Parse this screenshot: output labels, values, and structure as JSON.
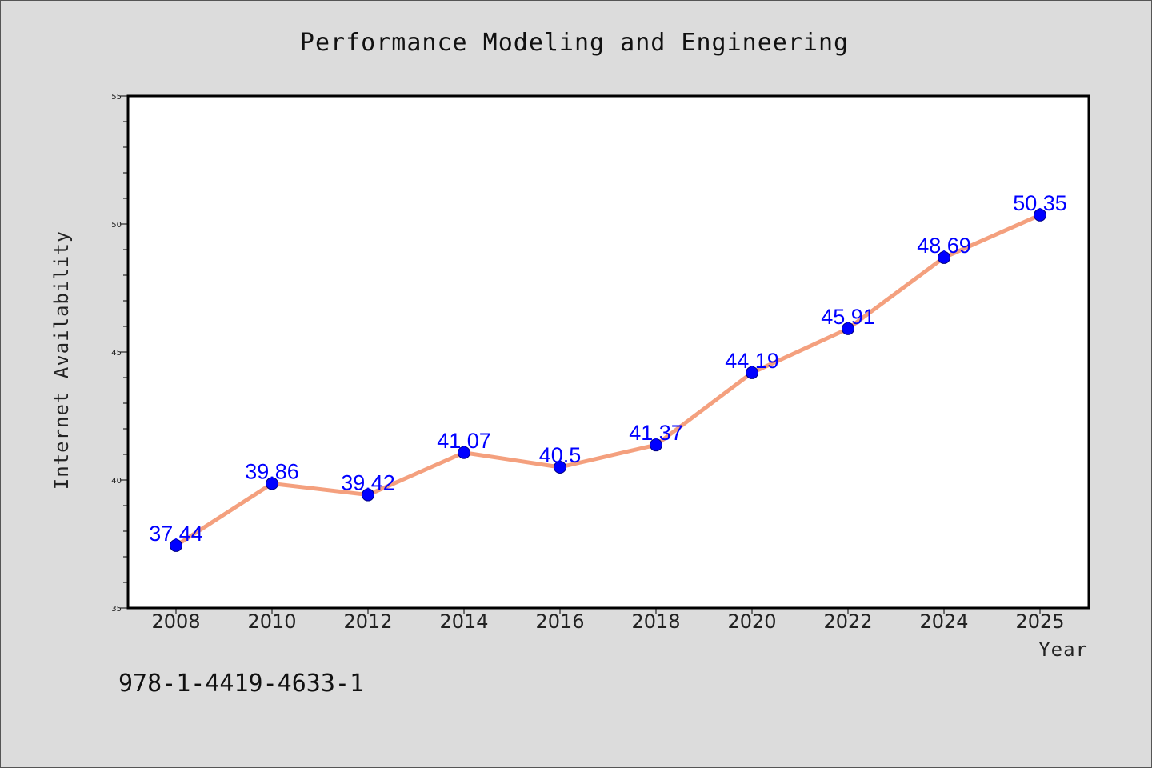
{
  "chart_data": {
    "type": "line",
    "title": "Performance Modeling and Engineering",
    "xlabel": "Year",
    "ylabel": "Internet Availability",
    "x": [
      "2008",
      "2010",
      "2012",
      "2014",
      "2016",
      "2018",
      "2020",
      "2022",
      "2024",
      "2025"
    ],
    "series": [
      {
        "values": [
          37.44,
          39.86,
          39.42,
          41.07,
          40.5,
          41.37,
          44.19,
          45.91,
          48.69,
          50.35
        ],
        "data_labels": [
          "37.44",
          "39.86",
          "39.42",
          "41.07",
          "40.5",
          "41.37",
          "44.19",
          "45.91",
          "48.69",
          "50.35"
        ],
        "line_color": "#f4a07e",
        "marker_color": "#0000ff"
      }
    ],
    "ylim": [
      35,
      55
    ],
    "y_ticks": [
      "35",
      "40",
      "45",
      "50",
      "55"
    ],
    "grid": false,
    "background": "#dcdcdc",
    "plot_background": "#ffffff"
  },
  "footer": {
    "isbn": "978-1-4419-4633-1"
  }
}
